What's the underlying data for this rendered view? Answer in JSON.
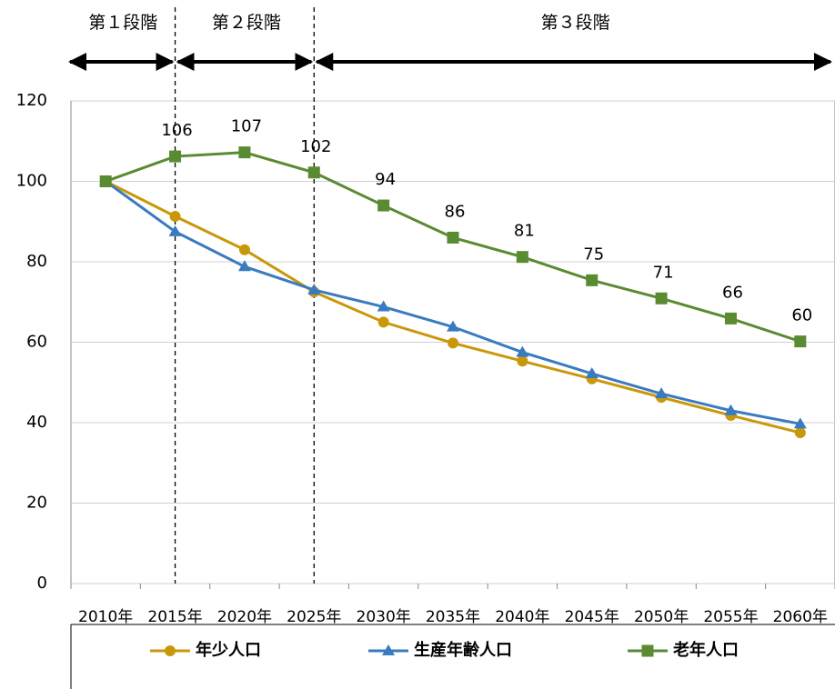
{
  "chart_data": {
    "type": "line",
    "annotations": [
      "第１段階",
      "第２段階",
      "第３段階"
    ],
    "categories": [
      "2010年",
      "2015年",
      "2020年",
      "2025年",
      "2030年",
      "2035年",
      "2040年",
      "2045年",
      "2050年",
      "2055年",
      "2060年"
    ],
    "series": [
      {
        "name": "年少人口",
        "color": "#c9980a",
        "marker": "circle",
        "values": [
          100,
          91.3,
          83,
          72.5,
          65,
          59.8,
          55.3,
          50.9,
          46.3,
          41.8,
          37.5
        ]
      },
      {
        "name": "生産年齢人口",
        "color": "#3a7bbf",
        "marker": "triangle",
        "values": [
          100,
          87.5,
          78.8,
          73,
          68.8,
          63.8,
          57.5,
          52.2,
          47.2,
          43,
          39.7
        ]
      },
      {
        "name": "老年人口",
        "color": "#5a8a32",
        "marker": "square",
        "values": [
          100,
          106.2,
          107.2,
          102.2,
          94,
          86,
          81.2,
          75.4,
          70.9,
          65.9,
          60.2
        ],
        "value_labels": [
          null,
          "106",
          "107",
          "102",
          "94",
          "86",
          "81",
          "75",
          "71",
          "66",
          "60"
        ]
      }
    ],
    "ylim": [
      0,
      120
    ],
    "yticks": [
      0,
      20,
      40,
      60,
      80,
      100,
      120
    ],
    "grid": true
  }
}
